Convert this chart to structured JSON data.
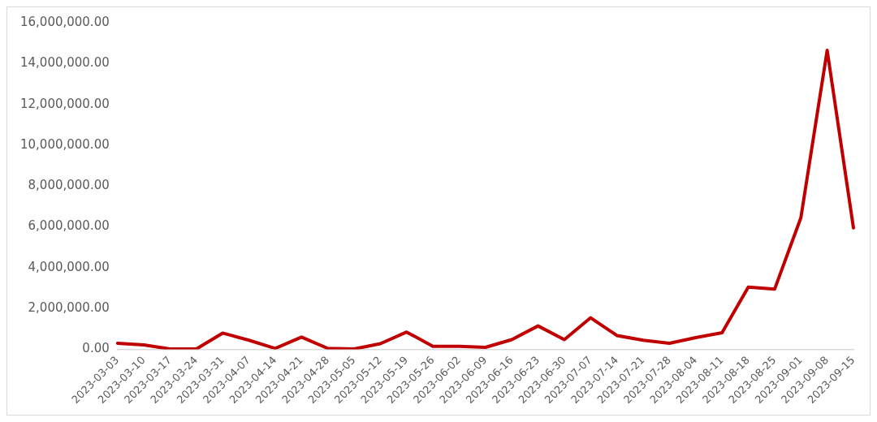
{
  "chart_data": {
    "type": "line",
    "categories": [
      "2023-03-03",
      "2023-03-10",
      "2023-03-17",
      "2023-03-24",
      "2023-03-31",
      "2023-04-07",
      "2023-04-14",
      "2023-04-21",
      "2023-04-28",
      "2023-05-05",
      "2023-05-12",
      "2023-05-19",
      "2023-05-26",
      "2023-06-02",
      "2023-06-09",
      "2023-06-16",
      "2023-06-23",
      "2023-06-30",
      "2023-07-07",
      "2023-07-14",
      "2023-07-21",
      "2023-07-28",
      "2023-08-04",
      "2023-08-11",
      "2023-08-18",
      "2023-08-25",
      "2023-09-01",
      "2023-09-08",
      "2023-09-15"
    ],
    "series": [
      {
        "color": "#c00000",
        "values": [
          300000,
          220000,
          20000,
          20000,
          800000,
          450000,
          50000,
          600000,
          50000,
          20000,
          280000,
          850000,
          150000,
          150000,
          100000,
          480000,
          1150000,
          480000,
          1550000,
          680000,
          450000,
          300000,
          580000,
          820000,
          3050000,
          2950000,
          6450000,
          14650000,
          5950000
        ]
      }
    ],
    "ylim": [
      0,
      16000000
    ],
    "yticks": [
      {
        "value": 0,
        "label": "0.00"
      },
      {
        "value": 2000000,
        "label": "2,000,000.00"
      },
      {
        "value": 4000000,
        "label": "4,000,000.00"
      },
      {
        "value": 6000000,
        "label": "6,000,000.00"
      },
      {
        "value": 8000000,
        "label": "8,000,000.00"
      },
      {
        "value": 10000000,
        "label": "10,000,000.00"
      },
      {
        "value": 12000000,
        "label": "12,000,000.00"
      },
      {
        "value": 14000000,
        "label": "14,000,000.00"
      },
      {
        "value": 16000000,
        "label": "16,000,000.00"
      }
    ],
    "grid": false,
    "legend": false,
    "marker": "none",
    "line_style": "solid"
  }
}
